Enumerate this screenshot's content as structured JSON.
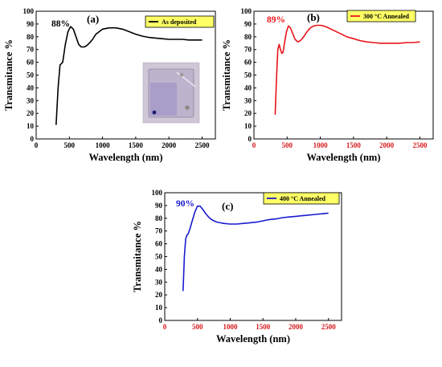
{
  "chart_data": [
    {
      "type": "line",
      "panel_label": "(a)",
      "annotation": "88%",
      "xlabel": "Wavelength (nm)",
      "ylabel": "Transmitance %",
      "xlim": [
        0,
        2700
      ],
      "ylim": [
        0,
        100
      ],
      "xticks": [
        0,
        500,
        1000,
        1500,
        2000,
        2500
      ],
      "yticks": [
        0,
        10,
        20,
        30,
        40,
        50,
        60,
        70,
        80,
        90,
        100
      ],
      "tick_color": "#000000",
      "inset_photo": true,
      "series": [
        {
          "name": "As deposited",
          "color": "#000000",
          "x": [
            300,
            330,
            360,
            400,
            440,
            480,
            520,
            560,
            600,
            640,
            680,
            720,
            760,
            800,
            850,
            900,
            1000,
            1100,
            1200,
            1300,
            1400,
            1500,
            1600,
            1700,
            1800,
            1900,
            2000,
            2100,
            2200,
            2300,
            2400,
            2500
          ],
          "y": [
            11,
            40,
            58,
            60,
            74,
            84,
            88,
            86,
            80,
            74,
            72,
            72,
            73,
            75,
            78,
            82,
            86,
            87,
            87,
            86,
            84,
            82,
            80.5,
            79.5,
            79,
            78.5,
            78,
            78,
            78,
            77.5,
            77.5,
            77.5
          ]
        }
      ]
    },
    {
      "type": "line",
      "panel_label": "(b)",
      "annotation": "89%",
      "xlabel": "Wavelength (nm)",
      "ylabel": "Transmitance %",
      "xlim": [
        0,
        2700
      ],
      "ylim": [
        0,
        100
      ],
      "xticks": [
        0,
        500,
        1000,
        1500,
        2000,
        2500
      ],
      "yticks": [
        0,
        10,
        20,
        30,
        40,
        50,
        60,
        70,
        80,
        90,
        100
      ],
      "tick_color": "#d7191c",
      "series": [
        {
          "name": "300 °C Annealed",
          "color": "#e8141a",
          "x": [
            320,
            340,
            360,
            380,
            400,
            420,
            440,
            460,
            490,
            520,
            550,
            580,
            620,
            660,
            700,
            750,
            800,
            850,
            900,
            950,
            1000,
            1050,
            1100,
            1200,
            1300,
            1400,
            1500,
            1600,
            1700,
            1800,
            1900,
            2000,
            2100,
            2200,
            2300,
            2400,
            2500
          ],
          "y": [
            19,
            48,
            70,
            74,
            70,
            67,
            68,
            75,
            84,
            88.5,
            87,
            83,
            78,
            76,
            77,
            80,
            84,
            87,
            88.5,
            89,
            89,
            88.5,
            87.5,
            85,
            82.5,
            80,
            78.5,
            77,
            76,
            75.5,
            75,
            75,
            75,
            75,
            75.5,
            75.5,
            76
          ]
        }
      ]
    },
    {
      "type": "line",
      "panel_label": "(c)",
      "annotation": "90%",
      "xlabel": "Wavelength (nm)",
      "ylabel": "Transmitance %",
      "xlim": [
        0,
        2700
      ],
      "ylim": [
        0,
        100
      ],
      "xticks": [
        0,
        500,
        1000,
        1500,
        2000,
        2500
      ],
      "yticks": [
        0,
        10,
        20,
        30,
        40,
        50,
        60,
        70,
        80,
        90,
        100
      ],
      "tick_color": "#d7191c",
      "series": [
        {
          "name": "400 °C Annealed",
          "color": "#1a1ad0",
          "x": [
            280,
            300,
            320,
            340,
            360,
            380,
            420,
            460,
            500,
            540,
            580,
            620,
            660,
            700,
            750,
            800,
            850,
            900,
            1000,
            1100,
            1200,
            1300,
            1400,
            1500,
            1600,
            1700,
            1800,
            1900,
            2000,
            2100,
            2200,
            2300,
            2400,
            2500
          ],
          "y": [
            23,
            50,
            64,
            67,
            68,
            71,
            78,
            85,
            89.5,
            89.5,
            87,
            84,
            81.5,
            79.5,
            78,
            77,
            76.5,
            76,
            75.5,
            75.5,
            76,
            76.5,
            77,
            78,
            79,
            79.5,
            80.5,
            81,
            81.5,
            82,
            82.5,
            83,
            83.5,
            84
          ]
        }
      ]
    }
  ]
}
